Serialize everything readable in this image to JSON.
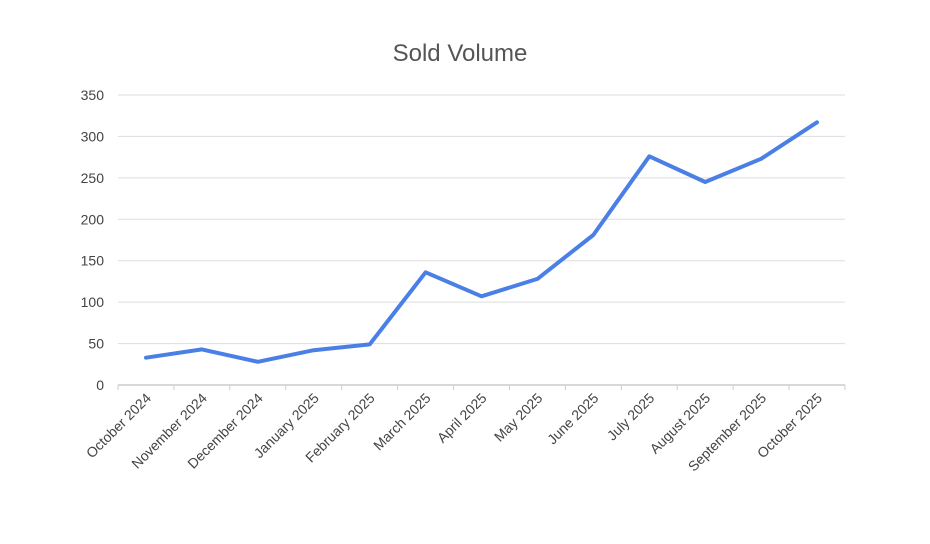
{
  "chart_data": {
    "type": "line",
    "title": "Sold Volume",
    "xlabel": "",
    "ylabel": "",
    "categories": [
      "October 2024",
      "November 2024",
      "December 2024",
      "January 2025",
      "February 2025",
      "March 2025",
      "April 2025",
      "May 2025",
      "June 2025",
      "July 2025",
      "August 2025",
      "September 2025",
      "October 2025"
    ],
    "series": [
      {
        "name": "Sold Volume",
        "color": "#4a7fe6",
        "values": [
          33,
          43,
          28,
          42,
          49,
          136,
          107,
          128,
          181,
          276,
          245,
          273,
          317
        ]
      }
    ],
    "ylim": [
      0,
      350
    ],
    "yticks": [
      0,
      50,
      100,
      150,
      200,
      250,
      300,
      350
    ],
    "grid": true,
    "legend": "none"
  }
}
